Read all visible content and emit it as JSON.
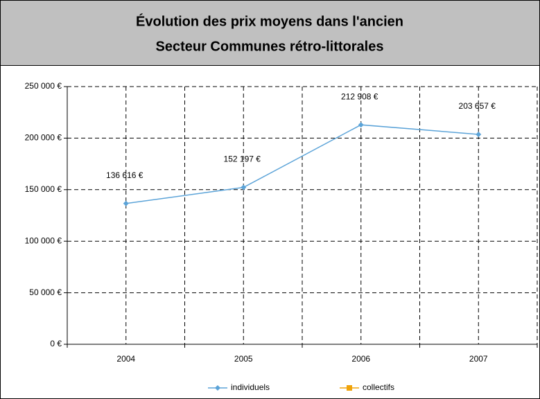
{
  "chart_data": {
    "type": "line",
    "title_lines": [
      "Évolution des prix moyens dans l'ancien",
      "Secteur Communes rétro-littorales"
    ],
    "categories": [
      "2004",
      "2005",
      "2006",
      "2007"
    ],
    "series": [
      {
        "name": "individuels",
        "color": "#5ba3d8",
        "values": [
          136616,
          152197,
          212908,
          203657
        ],
        "value_labels": [
          "136 616 €",
          "152 197 €",
          "212 908 €",
          "203 657 €"
        ]
      },
      {
        "name": "collectifs",
        "color": "#f0a30a",
        "values": [
          null,
          null,
          null,
          null
        ]
      }
    ],
    "ylim": [
      0,
      250000
    ],
    "yticks": [
      {
        "value": 0,
        "label": "0 €"
      },
      {
        "value": 50000,
        "label": "50 000 €"
      },
      {
        "value": 100000,
        "label": "100 000 €"
      },
      {
        "value": 150000,
        "label": "150 000 €"
      },
      {
        "value": 200000,
        "label": "200 000 €"
      },
      {
        "value": 250000,
        "label": "250 000 €"
      }
    ],
    "grid": true
  }
}
